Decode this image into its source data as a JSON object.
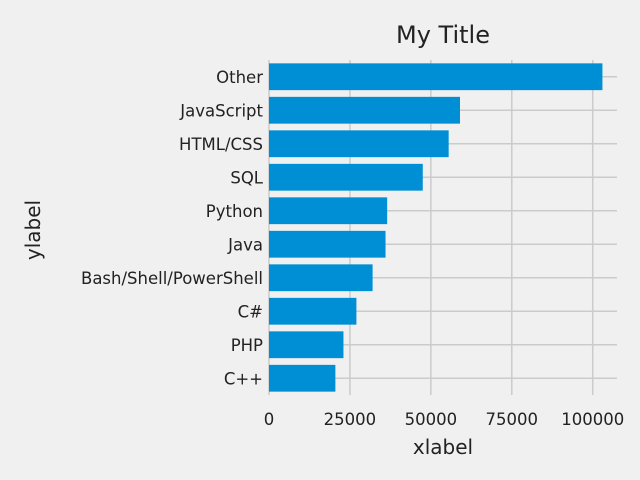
{
  "chart_data": {
    "type": "bar",
    "orientation": "horizontal",
    "title": "My Title",
    "xlabel": "xlabel",
    "ylabel": "ylabel",
    "categories": [
      "Other",
      "JavaScript",
      "HTML/CSS",
      "SQL",
      "Python",
      "Java",
      "Bash/Shell/PowerShell",
      "C#",
      "PHP",
      "C++"
    ],
    "values": [
      103000,
      59000,
      55500,
      47500,
      36500,
      36000,
      32000,
      27000,
      23000,
      20500
    ],
    "xlim": [
      0,
      107500
    ],
    "xticks": [
      0,
      25000,
      50000,
      75000,
      100000
    ],
    "xtick_labels": [
      "0",
      "25000",
      "50000",
      "75000",
      "100000"
    ],
    "grid": true,
    "bar_color": "#008fd5",
    "grid_color": "#cbcbcb",
    "background_color": "#f0f0f0"
  }
}
